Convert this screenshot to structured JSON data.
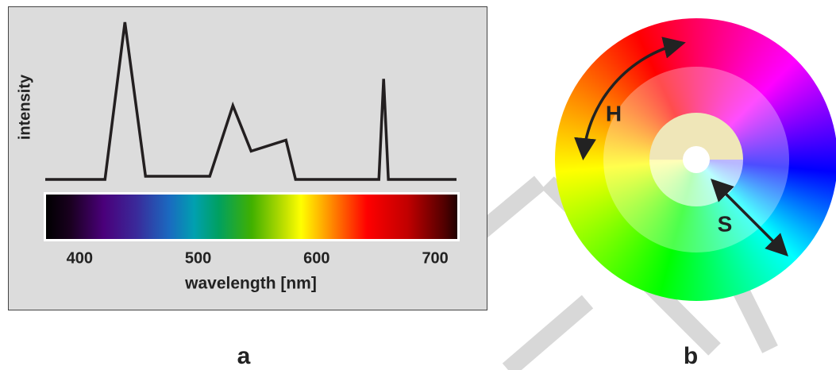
{
  "chart_data": {
    "type": "line",
    "xlabel": "wavelength [nm]",
    "ylabel": "intensity",
    "x": [
      371,
      421.4,
      438.2,
      455.6,
      509.8,
      529.3,
      544.7,
      574.1,
      582.2,
      652.5,
      656.5,
      660.5,
      718
    ],
    "values": [
      0,
      0,
      100,
      2,
      2,
      47,
      18,
      25,
      0,
      0,
      64,
      0,
      0
    ],
    "color": "#231f20",
    "xlim": [
      371,
      718
    ],
    "xticks": [
      400,
      500,
      600,
      700
    ],
    "ylim": [
      0,
      100
    ]
  },
  "panel_labels": [
    "a",
    "b"
  ],
  "wheel": {
    "hue_label": "H",
    "saturation_label": "S"
  }
}
